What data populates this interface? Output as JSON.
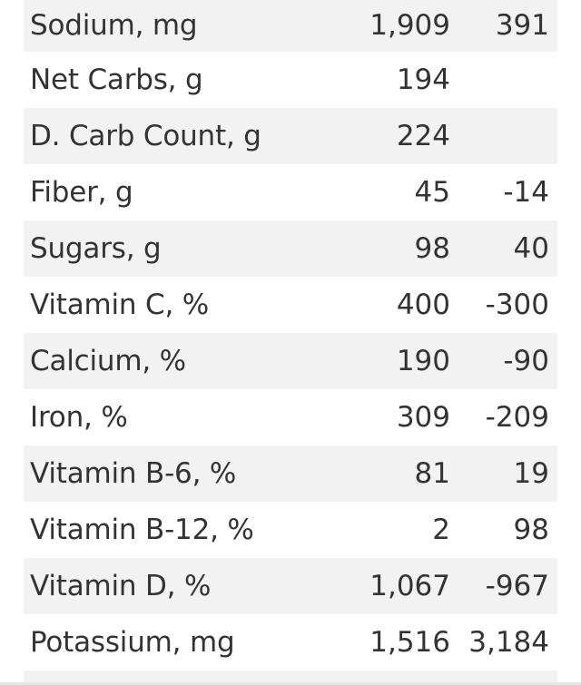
{
  "nutrients": [
    {
      "label": "Sodium, mg",
      "value": "1,909",
      "diff": "391"
    },
    {
      "label": "Net Carbs, g",
      "value": "194",
      "diff": ""
    },
    {
      "label": "D. Carb Count, g",
      "value": "224",
      "diff": ""
    },
    {
      "label": "Fiber, g",
      "value": "45",
      "diff": "-14"
    },
    {
      "label": "Sugars, g",
      "value": "98",
      "diff": "40"
    },
    {
      "label": "Vitamin C, %",
      "value": "400",
      "diff": "-300"
    },
    {
      "label": "Calcium, %",
      "value": "190",
      "diff": "-90"
    },
    {
      "label": "Iron, %",
      "value": "309",
      "diff": "-209"
    },
    {
      "label": "Vitamin B-6, %",
      "value": "81",
      "diff": "19"
    },
    {
      "label": "Vitamin B-12, %",
      "value": "2",
      "diff": "98"
    },
    {
      "label": "Vitamin D, %",
      "value": "1,067",
      "diff": "-967"
    },
    {
      "label": "Potassium, mg",
      "value": "1,516",
      "diff": "3,184"
    }
  ],
  "colors": {
    "text": "#333333",
    "row_shade": "#f2f2f2",
    "background": "#ffffff"
  }
}
